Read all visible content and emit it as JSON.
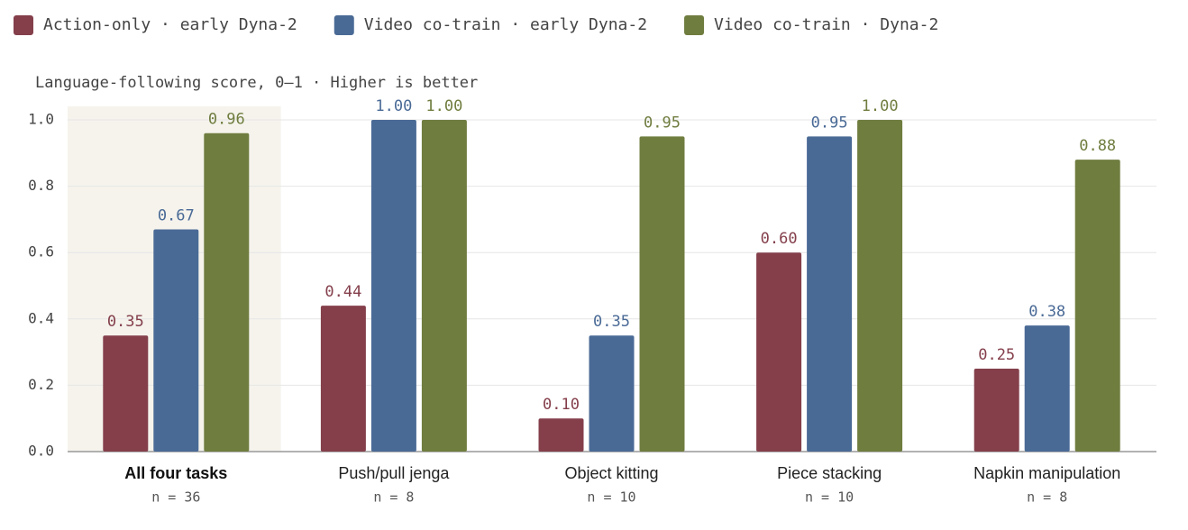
{
  "chart_data": {
    "type": "bar",
    "subtitle": "Language-following score, 0–1 · Higher is better",
    "categories": [
      "All four tasks",
      "Push/pull jenga",
      "Object kitting",
      "Piece stacking",
      "Napkin manipulation"
    ],
    "category_notes": [
      "n = 36",
      "n = 8",
      "n = 10",
      "n = 10",
      "n = 8"
    ],
    "highlight_index": 0,
    "series": [
      {
        "name": "Action-only · early Dyna-2",
        "color": "#843f4b",
        "values": [
          0.35,
          0.44,
          0.1,
          0.6,
          0.25
        ],
        "value_labels": [
          "0.35",
          "0.44",
          "0.10",
          "0.60",
          "0.25"
        ]
      },
      {
        "name": "Video co-train · early Dyna-2",
        "color": "#4a6a96",
        "values": [
          0.67,
          1.0,
          0.35,
          0.95,
          0.38
        ],
        "value_labels": [
          "0.67",
          "1.00",
          "0.35",
          "0.95",
          "0.38"
        ]
      },
      {
        "name": "Video co-train · Dyna-2",
        "color": "#6f7d3f",
        "values": [
          0.96,
          1.0,
          0.95,
          1.0,
          0.88
        ],
        "value_labels": [
          "0.96",
          "1.00",
          "0.95",
          "1.00",
          "0.88"
        ]
      }
    ],
    "ylim": [
      0,
      1
    ],
    "yticks": [
      {
        "value": 0,
        "label": "0.0"
      },
      0.2,
      0.4,
      0.6,
      0.8,
      {
        "value": 1,
        "label": "1.0"
      }
    ],
    "grid": true,
    "legend": "top"
  }
}
